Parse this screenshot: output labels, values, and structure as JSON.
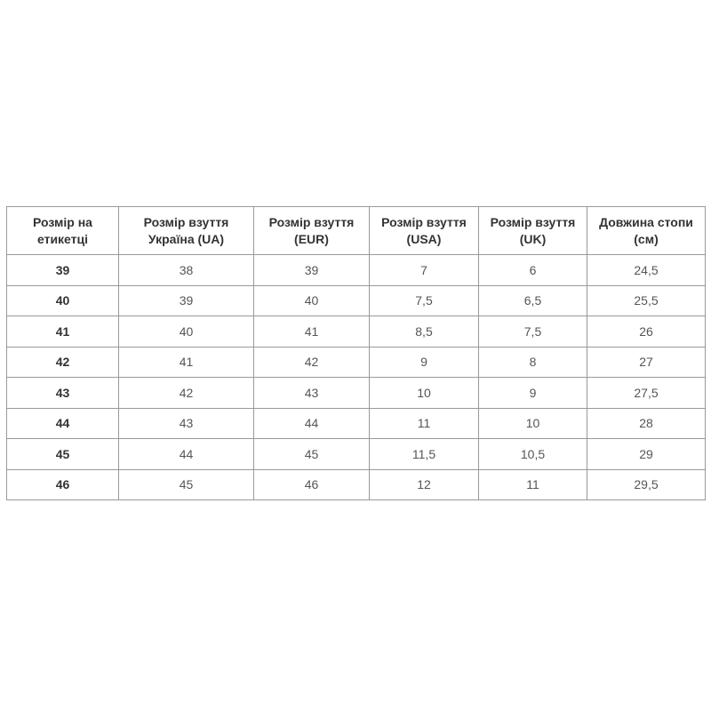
{
  "table": {
    "headers": [
      "Розмір на етикетці",
      "Розмір взуття Україна (UA)",
      "Розмір взуття (EUR)",
      "Розмір взуття (USA)",
      "Розмір взуття (UK)",
      "Довжина стопи (см)"
    ],
    "rows": [
      [
        "39",
        "38",
        "39",
        "7",
        "6",
        "24,5"
      ],
      [
        "40",
        "39",
        "40",
        "7,5",
        "6,5",
        "25,5"
      ],
      [
        "41",
        "40",
        "41",
        "8,5",
        "7,5",
        "26"
      ],
      [
        "42",
        "41",
        "42",
        "9",
        "8",
        "27"
      ],
      [
        "43",
        "42",
        "43",
        "10",
        "9",
        "27,5"
      ],
      [
        "44",
        "43",
        "44",
        "11",
        "10",
        "28"
      ],
      [
        "45",
        "44",
        "45",
        "11,5",
        "10,5",
        "29"
      ],
      [
        "46",
        "45",
        "46",
        "12",
        "11",
        "29,5"
      ]
    ]
  }
}
